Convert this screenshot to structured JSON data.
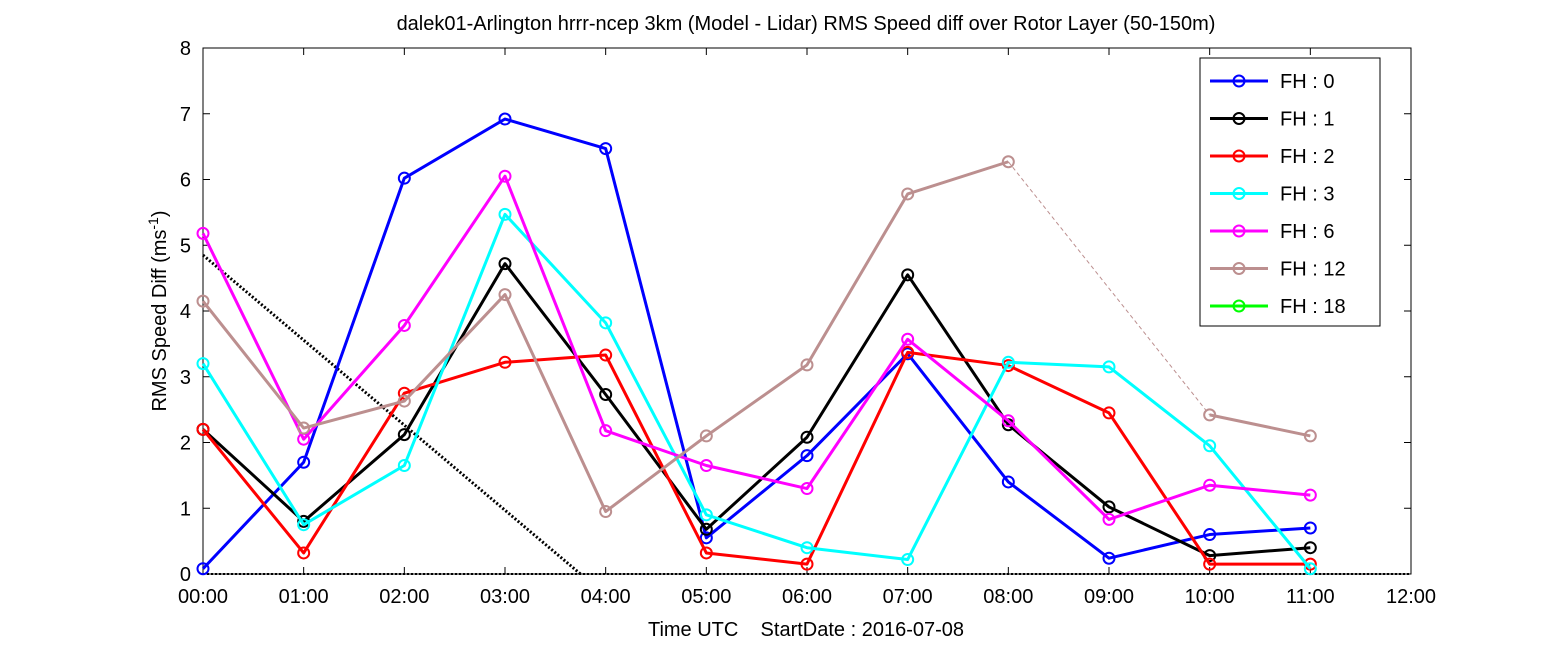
{
  "chart_data": {
    "type": "line",
    "title": "dalek01-Arlington hrrr-ncep 3km (Model - Lidar) RMS Speed diff over Rotor Layer (50-150m)",
    "xlabel": "Time UTC    StartDate : 2016-07-08",
    "ylabel": "RMS Speed Diff (ms",
    "ylabel_sup": "-1",
    "ylabel_end": ")",
    "x_ticks": [
      "00:00",
      "01:00",
      "02:00",
      "03:00",
      "04:00",
      "05:00",
      "06:00",
      "07:00",
      "08:00",
      "09:00",
      "10:00",
      "11:00",
      "12:00"
    ],
    "y_ticks": [
      "0",
      "1",
      "2",
      "3",
      "4",
      "5",
      "6",
      "7",
      "8"
    ],
    "xlim": [
      0,
      12
    ],
    "ylim": [
      0,
      8
    ],
    "grid": false,
    "legend_position": "top-right",
    "series": [
      {
        "name": "FH : 0",
        "color": "#0000ff",
        "x": [
          0,
          1,
          2,
          3,
          4,
          5,
          6,
          7,
          8,
          9,
          10,
          11
        ],
        "y": [
          0.08,
          1.7,
          6.02,
          6.92,
          6.47,
          0.55,
          1.8,
          3.35,
          1.4,
          0.24,
          0.6,
          0.7
        ]
      },
      {
        "name": "FH : 1",
        "color": "#000000",
        "x": [
          0,
          1,
          2,
          3,
          4,
          5,
          6,
          7,
          8,
          9,
          10,
          11
        ],
        "y": [
          2.2,
          0.8,
          2.12,
          4.72,
          2.73,
          0.68,
          2.08,
          4.55,
          2.27,
          1.02,
          0.28,
          0.4
        ]
      },
      {
        "name": "FH : 2",
        "color": "#ff0000",
        "x": [
          0,
          1,
          2,
          3,
          4,
          5,
          6,
          7,
          8,
          9,
          10,
          11
        ],
        "y": [
          2.2,
          0.32,
          2.75,
          3.22,
          3.33,
          0.32,
          0.15,
          3.37,
          3.17,
          2.45,
          0.15,
          0.15
        ]
      },
      {
        "name": "FH : 3",
        "color": "#00ffff",
        "x": [
          0,
          1,
          2,
          3,
          4,
          5,
          6,
          7,
          8,
          9,
          10,
          11
        ],
        "y": [
          3.2,
          0.75,
          1.65,
          5.47,
          3.82,
          0.9,
          0.4,
          0.22,
          3.22,
          3.15,
          1.95,
          0.08
        ]
      },
      {
        "name": "FH : 6",
        "color": "#ff00ff",
        "x": [
          0,
          1,
          2,
          3,
          4,
          5,
          6,
          7,
          8,
          9,
          10,
          11
        ],
        "y": [
          5.18,
          2.05,
          3.78,
          6.05,
          2.18,
          1.65,
          1.3,
          3.57,
          2.33,
          0.83,
          1.35,
          1.2
        ]
      },
      {
        "name": "FH : 12",
        "color": "#bc8f8f",
        "x": [
          0,
          1,
          2,
          3,
          4,
          5,
          6,
          7,
          8,
          9,
          10,
          11
        ],
        "y": [
          4.15,
          2.22,
          2.63,
          4.25,
          0.95,
          2.1,
          3.18,
          5.78,
          6.27,
          null,
          2.42,
          2.1
        ],
        "dashed_gap": [
          8,
          10
        ]
      },
      {
        "name": "FH : 18",
        "color": "#00ff00",
        "x": [],
        "y": []
      }
    ],
    "trend_line": {
      "color": "#000000",
      "style": "dotted",
      "x": [
        0,
        3.75
      ],
      "y": [
        4.85,
        0
      ]
    },
    "baseline": {
      "color": "#000000",
      "style": "dotted",
      "x": [
        0,
        12
      ],
      "y": [
        0,
        0
      ]
    }
  }
}
